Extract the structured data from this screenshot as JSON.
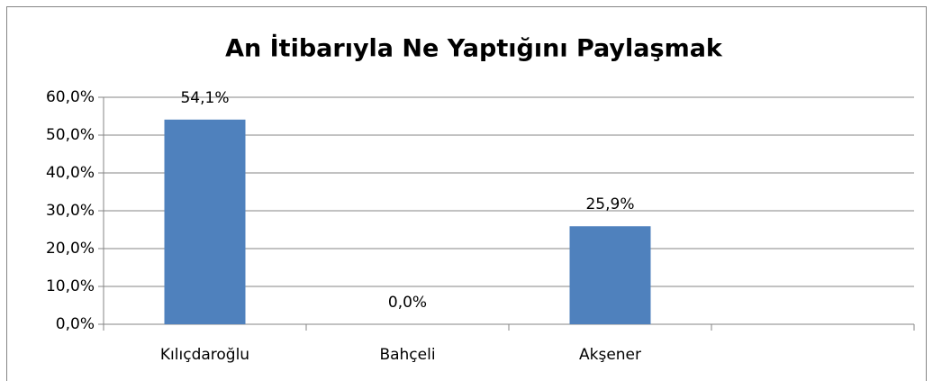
{
  "chart_data": {
    "type": "bar",
    "title": "An İtibarıyla Ne Yaptığını Paylaşmak",
    "categories": [
      "Kılıçdaroğlu",
      "Bahçeli",
      "Akşener",
      null
    ],
    "values": [
      54.1,
      0,
      25.9,
      null
    ],
    "value_labels": [
      "54,1%",
      "0,0%",
      "25,9%",
      null
    ],
    "color": "#4f81bd",
    "ylim": [
      0,
      60
    ],
    "yticks": [
      {
        "value": 0,
        "label": "0,0%"
      },
      {
        "value": 10,
        "label": "10,0%"
      },
      {
        "value": 20,
        "label": "20,0%"
      },
      {
        "value": 30,
        "label": "30,0%"
      },
      {
        "value": 40,
        "label": "40,0%"
      },
      {
        "value": 50,
        "label": "50,0%"
      },
      {
        "value": 60,
        "label": "60,0%"
      }
    ],
    "grid": true
  }
}
